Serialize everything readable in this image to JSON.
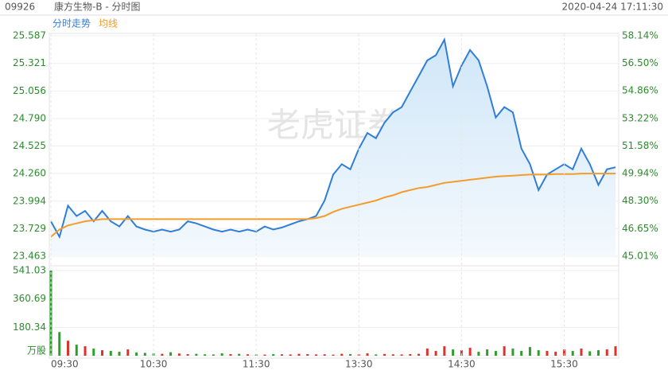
{
  "header": {
    "code": "09926",
    "name": "康方生物-B - 分时图",
    "datetime": "2020-04-24 17:11:30"
  },
  "watermark": "老虎证券",
  "chart_data": [
    {
      "type": "line",
      "series": [
        {
          "name": "分时走势",
          "color": "#2f7ed8",
          "values": [
            23.8,
            23.65,
            23.95,
            23.85,
            23.9,
            23.8,
            23.9,
            23.8,
            23.75,
            23.85,
            23.75,
            23.72,
            23.7,
            23.72,
            23.7,
            23.72,
            23.8,
            23.78,
            23.75,
            23.72,
            23.7,
            23.72,
            23.7,
            23.72,
            23.7,
            23.75,
            23.72,
            23.74,
            23.77,
            23.8,
            23.82,
            23.85,
            24.0,
            24.25,
            24.35,
            24.3,
            24.5,
            24.65,
            24.6,
            24.75,
            24.85,
            24.9,
            25.05,
            25.2,
            25.35,
            25.4,
            25.55,
            25.1,
            25.3,
            25.45,
            25.35,
            25.1,
            24.8,
            24.9,
            24.85,
            24.5,
            24.35,
            24.1,
            24.25,
            24.3,
            24.35,
            24.3,
            24.5,
            24.35,
            24.15,
            24.3,
            24.32
          ]
        },
        {
          "name": "均线",
          "color": "#f39c2c",
          "values": [
            23.65,
            23.72,
            23.76,
            23.78,
            23.8,
            23.81,
            23.82,
            23.82,
            23.82,
            23.82,
            23.82,
            23.82,
            23.82,
            23.82,
            23.82,
            23.82,
            23.82,
            23.82,
            23.82,
            23.82,
            23.82,
            23.82,
            23.82,
            23.82,
            23.82,
            23.82,
            23.82,
            23.82,
            23.82,
            23.82,
            23.82,
            23.83,
            23.85,
            23.89,
            23.92,
            23.94,
            23.96,
            23.98,
            24.0,
            24.03,
            24.05,
            24.08,
            24.1,
            24.12,
            24.13,
            24.15,
            24.17,
            24.18,
            24.19,
            24.2,
            24.21,
            24.22,
            24.23,
            24.235,
            24.24,
            24.245,
            24.25,
            24.25,
            24.25,
            24.255,
            24.255,
            24.255,
            24.26,
            24.26,
            24.26,
            24.26,
            24.26
          ]
        }
      ],
      "ylim": [
        23.463,
        25.587
      ],
      "yticks": [
        23.463,
        23.729,
        23.994,
        {
          "value": 24.26,
          "label": "24.260"
        },
        24.525,
        {
          "value": 24.79,
          "label": "24.790"
        },
        25.056,
        25.321,
        25.587
      ],
      "y2lim": [
        45.01,
        58.14
      ],
      "y2ticks": [
        {
          "value": 45.01,
          "label": "45.01%"
        },
        {
          "value": 46.65,
          "label": "46.65%"
        },
        {
          "value": 48.3,
          "label": "48.30%"
        },
        {
          "value": 49.94,
          "label": "49.94%"
        },
        {
          "value": 51.58,
          "label": "51.58%"
        },
        {
          "value": 53.22,
          "label": "53.22%"
        },
        {
          "value": 54.86,
          "label": "54.86%"
        },
        {
          "value": 56.5,
          "label": "56.50%"
        },
        {
          "value": 58.14,
          "label": "58.14%"
        }
      ],
      "grid": true
    },
    {
      "type": "bar",
      "categories": [
        "09:30",
        null,
        null,
        null,
        null,
        null,
        null,
        null,
        null,
        null,
        null,
        null,
        "10:30",
        null,
        null,
        null,
        null,
        null,
        null,
        null,
        null,
        null,
        null,
        null,
        "11:30",
        null,
        null,
        null,
        null,
        null,
        null,
        null,
        null,
        null,
        null,
        null,
        "13:30",
        null,
        null,
        null,
        null,
        null,
        null,
        null,
        null,
        null,
        null,
        null,
        "14:30",
        null,
        null,
        null,
        null,
        null,
        null,
        null,
        null,
        null,
        null,
        null,
        "15:30",
        null,
        null,
        null,
        null,
        null,
        null
      ],
      "values": [
        541,
        150,
        95,
        70,
        60,
        45,
        35,
        30,
        25,
        40,
        20,
        18,
        15,
        12,
        22,
        14,
        10,
        12,
        9,
        8,
        15,
        10,
        12,
        9,
        8,
        7,
        10,
        9,
        8,
        12,
        10,
        8,
        9,
        7,
        12,
        10,
        9,
        15,
        8,
        11,
        9,
        8,
        10,
        12,
        45,
        30,
        60,
        40,
        35,
        50,
        25,
        40,
        30,
        60,
        45,
        30,
        55,
        35,
        30,
        25,
        40,
        30,
        45,
        28,
        35,
        40,
        60
      ],
      "ylim": [
        0,
        541.03
      ],
      "yticks": [
        {
          "value": 0,
          "label": "万股"
        },
        180.34,
        360.69,
        541.03
      ],
      "up_color": "#e0302a",
      "down_color": "#2aa02a",
      "grid": true
    }
  ]
}
